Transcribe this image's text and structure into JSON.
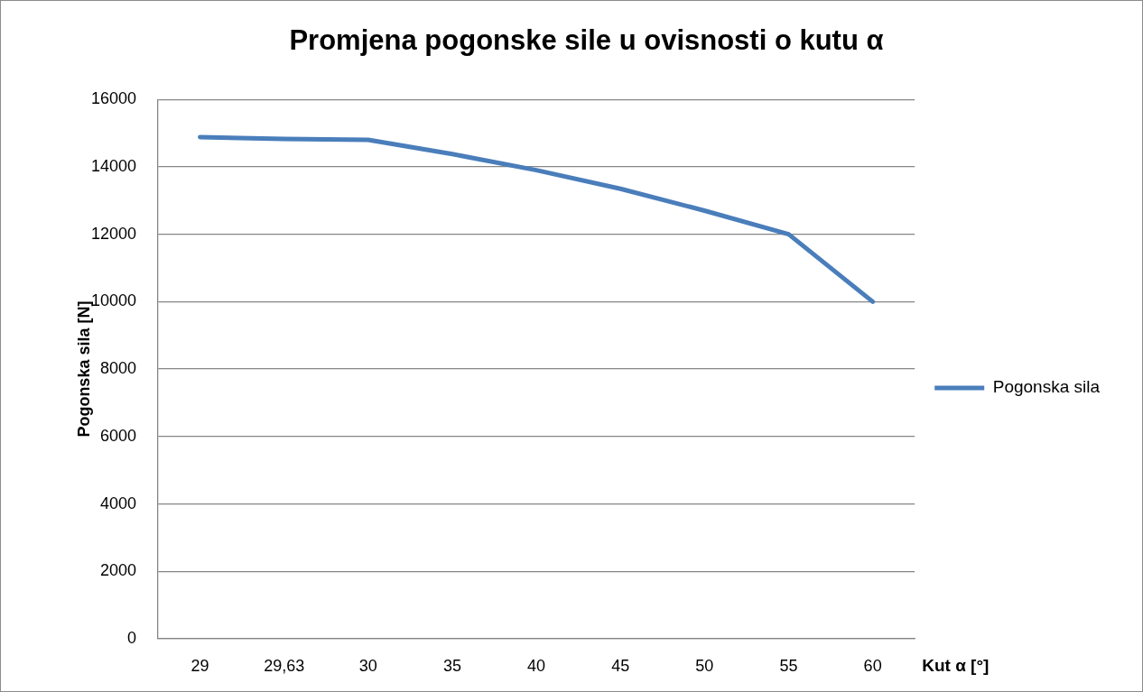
{
  "chart_data": {
    "type": "line",
    "title": "Promjena pogonske sile u ovisnosti o kutu α",
    "xlabel": "Kut α [°]",
    "ylabel": "Pogonska sila [N]",
    "categories": [
      "29",
      "29,63",
      "30",
      "35",
      "40",
      "45",
      "50",
      "55",
      "60"
    ],
    "series": [
      {
        "name": "Pogonska sila",
        "color": "#4a7ebb",
        "values": [
          14880,
          14830,
          14800,
          14380,
          13900,
          13350,
          12700,
          12000,
          10000
        ]
      }
    ],
    "ylim": [
      0,
      16000
    ],
    "yticks": [
      0,
      2000,
      4000,
      6000,
      8000,
      10000,
      12000,
      14000,
      16000
    ],
    "grid": "y",
    "legend": "right"
  }
}
